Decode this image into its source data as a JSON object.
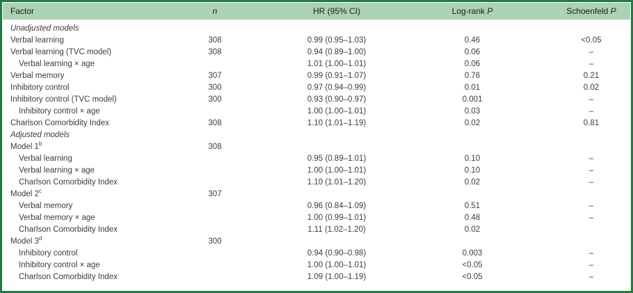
{
  "colors": {
    "header_bg": "#a9d3b2",
    "frame_border": "#227a43",
    "text": "#3c3c3c"
  },
  "table": {
    "header": {
      "columns": [
        {
          "text": "Factor",
          "italic": ""
        },
        {
          "text": "",
          "italic": "n"
        },
        {
          "text": "HR (95% CI)",
          "italic": ""
        },
        {
          "text": "Log-rank ",
          "italic": "P"
        },
        {
          "text": "Schoenfeld ",
          "italic": "P"
        }
      ]
    },
    "rows": [
      {
        "section": true,
        "factor": "Unadjusted models"
      },
      {
        "factor": "Verbal learning",
        "n": "308",
        "hr": "0.99 (0.95–1.03)",
        "logrank": "0.46",
        "schoenfeld": "<0.05"
      },
      {
        "factor": "Verbal learning (TVC model)",
        "n": "308",
        "hr": "0.94 (0.89–1.00)",
        "logrank": "0.06",
        "schoenfeld": "–"
      },
      {
        "indent": true,
        "factor": "Verbal learning × age",
        "hr": "1.01 (1.00–1.01)",
        "logrank": "0.06",
        "schoenfeld": "–"
      },
      {
        "factor": "Verbal memory",
        "n": "307",
        "hr": "0.99 (0.91–1.07)",
        "logrank": "0.76",
        "schoenfeld": "0.21"
      },
      {
        "factor": "Inhibitory control",
        "n": "300",
        "hr": "0.97 (0.94–0.99)",
        "logrank": "0.01",
        "schoenfeld": "0.02"
      },
      {
        "factor": "Inhibitory control (TVC model)",
        "n": "300",
        "hr": "0.93 (0.90–0.97)",
        "logrank": "0.001",
        "schoenfeld": "–"
      },
      {
        "indent": true,
        "factor": "Inhibitory control × age",
        "hr": "1.00 (1.00–1.01)",
        "logrank": "0.03",
        "schoenfeld": "–"
      },
      {
        "factor": "Charlson Comorbidity Index",
        "n": "308",
        "hr": "1.10 (1.01–1.19)",
        "logrank": "0.02",
        "schoenfeld": "0.81"
      },
      {
        "section": true,
        "factor": "Adjusted models"
      },
      {
        "factor": "Model 1",
        "sup": "b",
        "n": "308"
      },
      {
        "indent": true,
        "factor": "Verbal learning",
        "hr": "0.95 (0.89–1.01)",
        "logrank": "0.10",
        "schoenfeld": "–"
      },
      {
        "indent": true,
        "factor": "Verbal learning × age",
        "hr": "1.00 (1.00–1.01)",
        "logrank": "0.10",
        "schoenfeld": "–"
      },
      {
        "indent": true,
        "factor": "Charlson Comorbidity Index",
        "hr": "1.10 (1.01–1.20)",
        "logrank": "0.02",
        "schoenfeld": "–"
      },
      {
        "factor": "Model 2",
        "sup": "c",
        "n": "307"
      },
      {
        "indent": true,
        "factor": "Verbal memory",
        "hr": "0.96 (0.84–1.09)",
        "logrank": "0.51",
        "schoenfeld": "–"
      },
      {
        "indent": true,
        "factor": "Verbal memory × age",
        "hr": "1.00 (0.99–1.01)",
        "logrank": "0.48",
        "schoenfeld": "–"
      },
      {
        "indent": true,
        "factor": "Charlson Comorbidity Index",
        "hr": "1.11 (1.02–1.20)",
        "logrank": "0.02",
        "schoenfeld": ""
      },
      {
        "factor": "Model 3",
        "sup": "d",
        "n": "300"
      },
      {
        "indent": true,
        "factor": "Inhibitory control",
        "hr": "0.94 (0.90–0.98)",
        "logrank": "0.003",
        "schoenfeld": "–"
      },
      {
        "indent": true,
        "factor": "Inhibitory control × age",
        "hr": "1.00 (1.00–1.01)",
        "logrank": "<0.05",
        "schoenfeld": "–"
      },
      {
        "indent": true,
        "factor": "Charlson Comorbidity Index",
        "hr": "1.09 (1.00–1.19)",
        "logrank": "<0.05",
        "schoenfeld": "–"
      }
    ]
  }
}
